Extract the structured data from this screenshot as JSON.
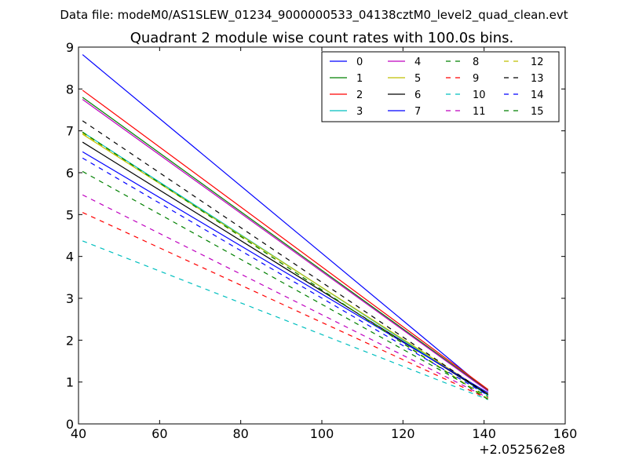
{
  "suptitle": "Data file: modeM0/AS1SLEW_01234_9000000533_04138cztM0_level2_quad_clean.evt",
  "chart_data": {
    "type": "line",
    "title": "Quadrant 2 module wise count rates with 100.0s bins.",
    "xlabel": "",
    "ylabel": "",
    "x_offset_label": "+2.052562e8",
    "xlim": [
      40,
      160
    ],
    "ylim": [
      0,
      9
    ],
    "xticks": [
      "40",
      "60",
      "80",
      "100",
      "120",
      "140",
      "160"
    ],
    "yticks": [
      "0",
      "1",
      "2",
      "3",
      "4",
      "5",
      "6",
      "7",
      "8",
      "9"
    ],
    "x": [
      41,
      141
    ],
    "grid": false,
    "legend_position": "top-right",
    "series": [
      {
        "name": "0",
        "values": [
          8.82,
          0.78
        ],
        "color": "#0000ff",
        "style": "solid"
      },
      {
        "name": "1",
        "values": [
          7.8,
          0.8
        ],
        "color": "#008000",
        "style": "solid"
      },
      {
        "name": "2",
        "values": [
          7.97,
          0.82
        ],
        "color": "#ff0000",
        "style": "solid"
      },
      {
        "name": "3",
        "values": [
          6.97,
          0.68
        ],
        "color": "#00bfbf",
        "style": "solid"
      },
      {
        "name": "4",
        "values": [
          7.75,
          0.78
        ],
        "color": "#bf00bf",
        "style": "solid"
      },
      {
        "name": "5",
        "values": [
          6.92,
          0.72
        ],
        "color": "#bfbf00",
        "style": "solid"
      },
      {
        "name": "6",
        "values": [
          6.73,
          0.7
        ],
        "color": "#000000",
        "style": "solid"
      },
      {
        "name": "7",
        "values": [
          6.5,
          0.74
        ],
        "color": "#0000ff",
        "style": "solid"
      },
      {
        "name": "8",
        "values": [
          6.03,
          0.65
        ],
        "color": "#008000",
        "style": "dashed"
      },
      {
        "name": "9",
        "values": [
          5.05,
          0.6
        ],
        "color": "#ff0000",
        "style": "dashed"
      },
      {
        "name": "10",
        "values": [
          4.37,
          0.58
        ],
        "color": "#00bfbf",
        "style": "dashed"
      },
      {
        "name": "11",
        "values": [
          5.47,
          0.62
        ],
        "color": "#bf00bf",
        "style": "dashed"
      },
      {
        "name": "12",
        "values": [
          6.95,
          0.6
        ],
        "color": "#bfbf00",
        "style": "dashed"
      },
      {
        "name": "13",
        "values": [
          7.24,
          0.7
        ],
        "color": "#000000",
        "style": "dashed"
      },
      {
        "name": "14",
        "values": [
          6.35,
          0.68
        ],
        "color": "#0000ff",
        "style": "dashed"
      },
      {
        "name": "15",
        "values": [
          6.97,
          0.58
        ],
        "color": "#008000",
        "style": "dashed"
      }
    ]
  }
}
